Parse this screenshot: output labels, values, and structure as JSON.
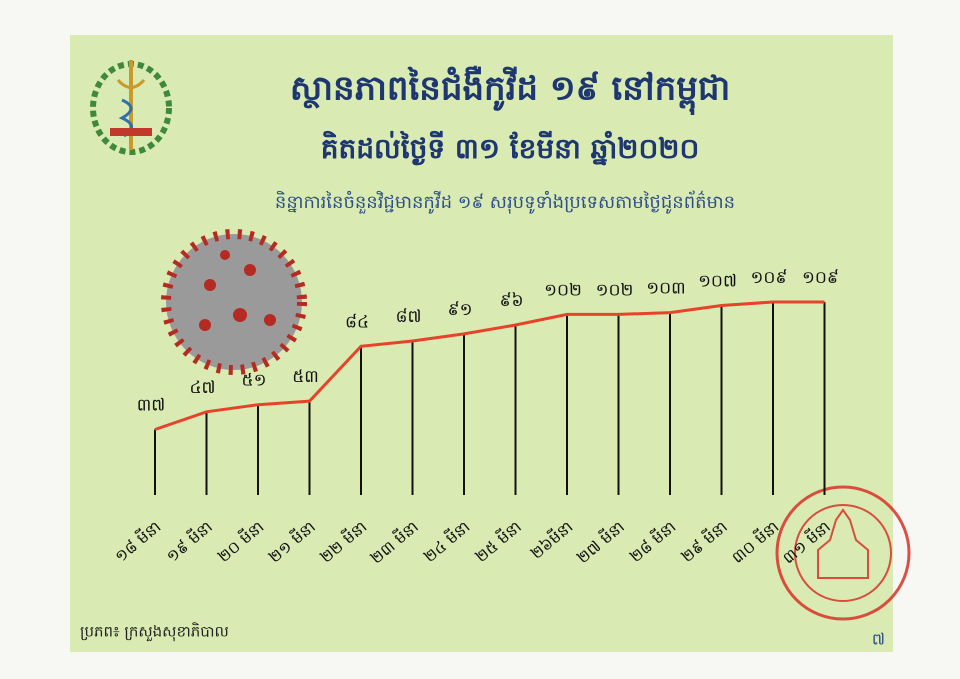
{
  "chart_data": {
    "type": "line",
    "title": "ស្ថានភាពនៃជំងឺកូវីដ ១៩ នៅកម្ពុជា",
    "subtitle": "គិតដល់ថ្ងៃទី ៣១ ខែមីនា ឆ្នាំ២០២០",
    "description": "និន្នាការនៃចំនួនវិជ្ជមានកូវីដ ១៩ សរុបទូទាំងប្រទេសតាមថ្ងៃជូនព័ត៌មាន",
    "source": "ប្រភព៖ ក្រសួងសុខាភិបាល",
    "page_number": "៧",
    "categories": [
      "១៨ មីនា",
      "១៩ មីនា",
      "២០ មីនា",
      "២១ មីនា",
      "២២ មីនា",
      "២៣ មីនា",
      "២៤ មីនា",
      "២៥ មីនា",
      "២៦មីនា",
      "២៧ មីនា",
      "២៨ មីនា",
      "២៩ មីនា",
      "៣០ មីនា",
      "៣១ មីនា"
    ],
    "values": [
      37,
      47,
      51,
      53,
      84,
      87,
      91,
      96,
      102,
      102,
      103,
      107,
      109,
      109
    ],
    "value_labels": [
      "៣៧",
      "៤៧",
      "៥១",
      "៥៣",
      "៨៤",
      "៨៧",
      "៩១",
      "៩៦",
      "១០២",
      "១០២",
      "១០៣",
      "១០៧",
      "១០៩",
      "១០៩"
    ],
    "color": "#e8432a"
  }
}
